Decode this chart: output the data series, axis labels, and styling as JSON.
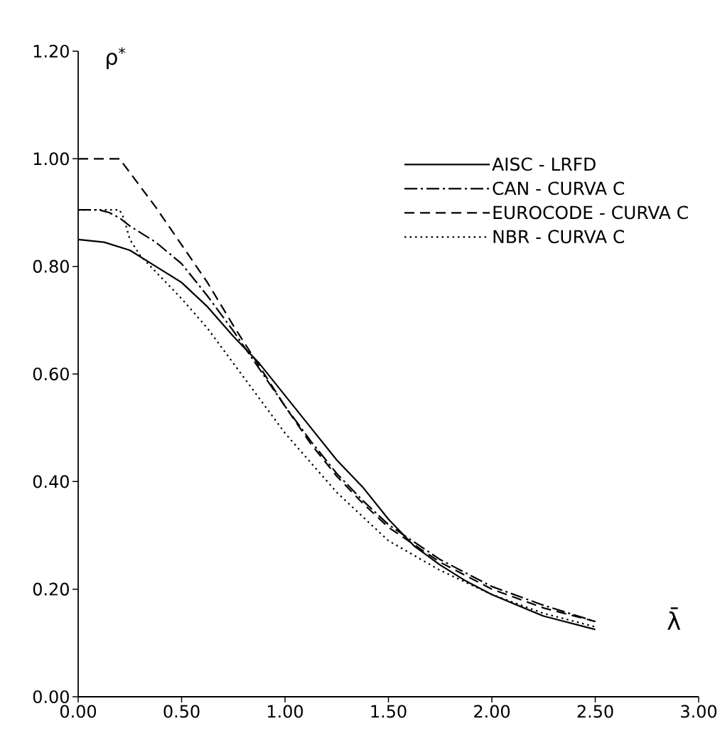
{
  "chart_data": {
    "type": "line",
    "xlabel": "λ̄",
    "ylabel": "ρ$^{*}$",
    "xlim": [
      0,
      3
    ],
    "ylim": [
      0,
      1.2
    ],
    "xticks": [
      {
        "value": 0,
        "label": "0.00"
      },
      {
        "value": 0.5,
        "label": "0.50"
      },
      {
        "value": 1,
        "label": "1.00"
      },
      {
        "value": 1.5,
        "label": "1.50"
      },
      {
        "value": 2,
        "label": "2.00"
      },
      {
        "value": 2.5,
        "label": "2.50"
      },
      {
        "value": 3,
        "label": "3.00"
      }
    ],
    "yticks": [
      {
        "value": 0,
        "label": "0.00"
      },
      {
        "value": 0.2,
        "label": "0.20"
      },
      {
        "value": 0.4,
        "label": "0.40"
      },
      {
        "value": 0.6,
        "label": "0.60"
      },
      {
        "value": 0.8,
        "label": "0.80"
      },
      {
        "value": 1,
        "label": "1.00"
      },
      {
        "value": 1.2,
        "label": "1.20"
      }
    ],
    "legend": "top right",
    "grid": false,
    "marker": "none",
    "series": [
      {
        "name": "AISC - LRFD",
        "color": "#000000",
        "line_style": "solid",
        "x": [
          0,
          0.125,
          0.25,
          0.375,
          0.5,
          0.625,
          0.75,
          0.875,
          1,
          1.125,
          1.25,
          1.375,
          1.5,
          1.625,
          1.75,
          1.875,
          2,
          2.25,
          2.5
        ],
        "values": [
          0.85,
          0.845,
          0.83,
          0.8,
          0.77,
          0.725,
          0.67,
          0.62,
          0.56,
          0.5,
          0.44,
          0.39,
          0.33,
          0.28,
          0.245,
          0.215,
          0.19,
          0.15,
          0.125
        ]
      },
      {
        "name": "CAN - CURVA C",
        "color": "#000000",
        "line_style": "dashdot",
        "x": [
          0,
          0.1,
          0.15,
          0.2,
          0.25,
          0.375,
          0.5,
          0.625,
          0.75,
          0.875,
          1,
          1.125,
          1.25,
          1.375,
          1.5,
          1.75,
          2,
          2.25,
          2.5
        ],
        "values": [
          0.905,
          0.905,
          0.9,
          0.89,
          0.875,
          0.845,
          0.805,
          0.745,
          0.68,
          0.61,
          0.54,
          0.475,
          0.415,
          0.365,
          0.32,
          0.255,
          0.205,
          0.17,
          0.14
        ]
      },
      {
        "name": "EUROCODE - CURVA C",
        "color": "#000000",
        "line_style": "dashed",
        "x": [
          0,
          0.2,
          0.375,
          0.5,
          0.625,
          0.75,
          0.875,
          1,
          1.125,
          1.25,
          1.375,
          1.5,
          1.75,
          2,
          2.25,
          2.5
        ],
        "values": [
          1,
          1,
          0.91,
          0.84,
          0.77,
          0.69,
          0.615,
          0.54,
          0.47,
          0.41,
          0.36,
          0.315,
          0.25,
          0.2,
          0.165,
          0.14
        ]
      },
      {
        "name": "NBR - CURVA C",
        "color": "#000000",
        "line_style": "dotted",
        "x": [
          0,
          0.2,
          0.22,
          0.25,
          0.3,
          0.4,
          0.5,
          0.625,
          0.75,
          0.875,
          1,
          1.125,
          1.25,
          1.5,
          1.75,
          2,
          2.25,
          2.5
        ],
        "values": [
          0.905,
          0.905,
          0.89,
          0.85,
          0.82,
          0.78,
          0.74,
          0.685,
          0.62,
          0.555,
          0.49,
          0.435,
          0.38,
          0.29,
          0.235,
          0.19,
          0.155,
          0.13
        ]
      }
    ]
  }
}
